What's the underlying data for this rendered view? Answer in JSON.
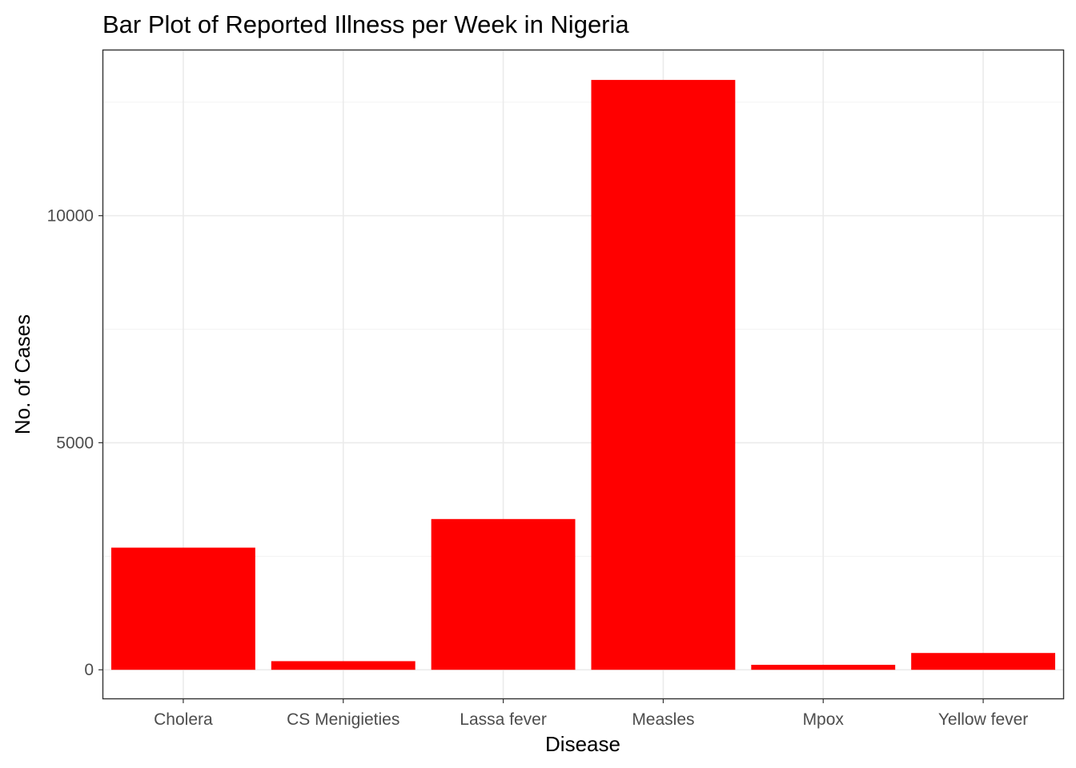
{
  "chart_data": {
    "type": "bar",
    "title": "Bar Plot of Reported Illness per Week in Nigeria",
    "xlabel": "Disease",
    "ylabel": "No. of Cases",
    "categories": [
      "Cholera",
      "CS Menigieties",
      "Lassa fever",
      "Measles",
      "Mpox",
      "Yellow fever"
    ],
    "values": [
      2690,
      190,
      3320,
      12990,
      110,
      370
    ],
    "ylim": [
      -630,
      13640
    ],
    "y_ticks": [
      0,
      5000,
      10000
    ],
    "y_tick_labels": [
      "0",
      "5000",
      "10000"
    ],
    "bar_color": "#ff0000",
    "grid": true,
    "legend": "none"
  }
}
